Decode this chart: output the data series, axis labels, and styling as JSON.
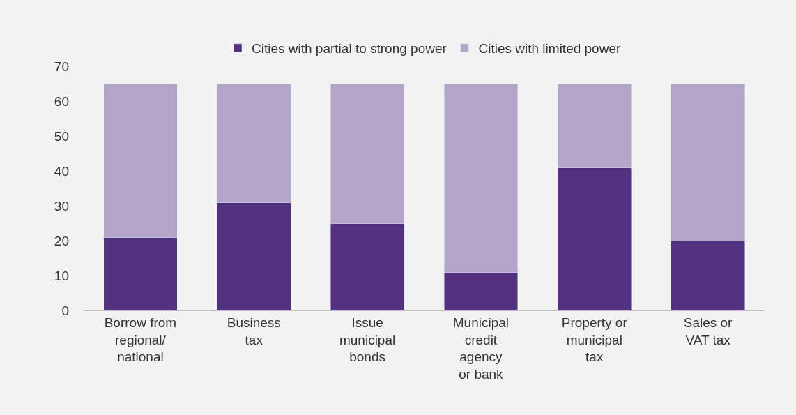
{
  "chart_data": {
    "type": "bar",
    "stacked": true,
    "categories": [
      "Borrow from\nregional/\nnational",
      "Business\ntax",
      "Issue\nmunicipal\nbonds",
      "Municipal\ncredit\nagency\nor bank",
      "Property or\nmunicipal\ntax",
      "Sales or\nVAT tax"
    ],
    "series": [
      {
        "name": "Cities with partial to strong power",
        "color": "#523181",
        "values": [
          21,
          31,
          25,
          11,
          41,
          20
        ]
      },
      {
        "name": "Cities with limited power",
        "color": "#b3a5c8",
        "values": [
          44,
          34,
          40,
          54,
          24,
          45
        ]
      }
    ],
    "ylim": [
      0,
      70
    ],
    "yticks": [
      0,
      10,
      20,
      30,
      40,
      50,
      60,
      70
    ],
    "grid": false,
    "legend": "top"
  }
}
